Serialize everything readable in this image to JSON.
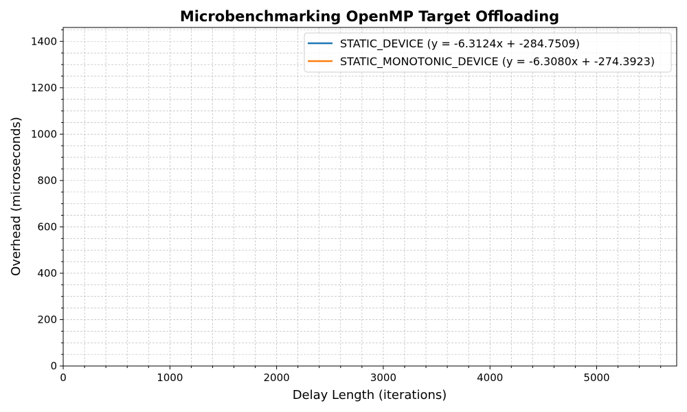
{
  "chart_data": {
    "type": "line",
    "title": "Microbenchmarking OpenMP Target Offloading",
    "xlabel": "Delay Length (iterations)",
    "ylabel": "Overhead (microseconds)",
    "xlim": [
      0,
      5750
    ],
    "ylim": [
      0,
      1460
    ],
    "x_ticks": [
      0,
      1000,
      2000,
      3000,
      4000,
      5000
    ],
    "y_ticks": [
      0,
      200,
      400,
      600,
      800,
      1000,
      1200,
      1400
    ],
    "x_minor_step": 200,
    "y_minor_step": 50,
    "grid": true,
    "legend_position": "upper-right",
    "series": [
      {
        "name": "STATIC_DEVICE (y = -6.3124x + -284.7509)",
        "color": "#1f77b4",
        "x": [],
        "y": []
      },
      {
        "name": "STATIC_MONOTONIC_DEVICE (y = -6.3080x + -274.3923)",
        "color": "#ff7f0e",
        "x": [],
        "y": []
      }
    ]
  }
}
